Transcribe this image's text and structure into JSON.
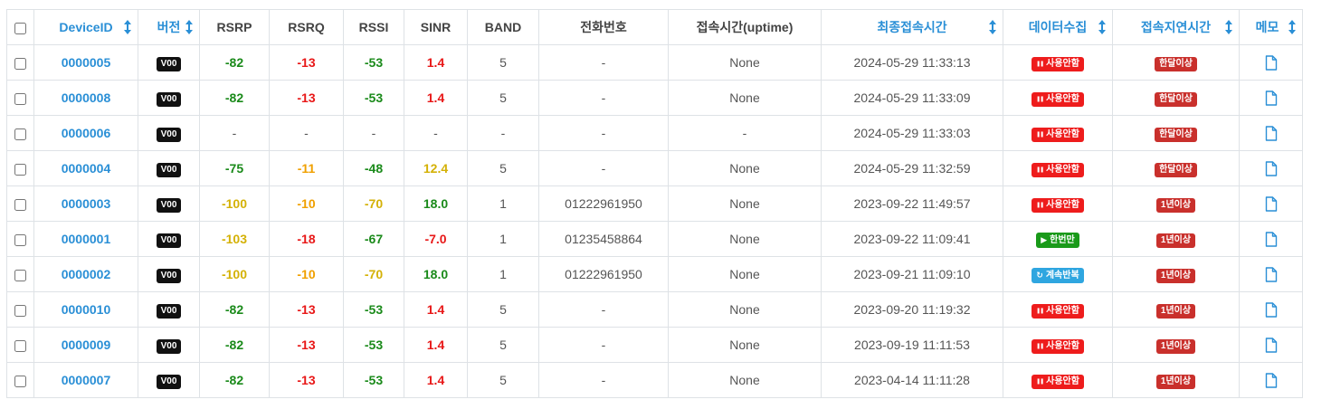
{
  "columns": [
    {
      "key": "select",
      "label": "",
      "sortable": false
    },
    {
      "key": "device_id",
      "label": "DeviceID",
      "sortable": true
    },
    {
      "key": "version",
      "label": "버전",
      "sortable": true
    },
    {
      "key": "rsrp",
      "label": "RSRP",
      "sortable": false
    },
    {
      "key": "rsrq",
      "label": "RSRQ",
      "sortable": false
    },
    {
      "key": "rssi",
      "label": "RSSI",
      "sortable": false
    },
    {
      "key": "sinr",
      "label": "SINR",
      "sortable": false
    },
    {
      "key": "band",
      "label": "BAND",
      "sortable": false
    },
    {
      "key": "phone",
      "label": "전화번호",
      "sortable": false
    },
    {
      "key": "uptime",
      "label": "접속시간(uptime)",
      "sortable": false
    },
    {
      "key": "last_connect",
      "label": "최종접속시간",
      "sortable": true
    },
    {
      "key": "data_collect",
      "label": "데이터수집",
      "sortable": true
    },
    {
      "key": "delay",
      "label": "접속지연시간",
      "sortable": true
    },
    {
      "key": "memo",
      "label": "메모",
      "sortable": true
    }
  ],
  "colors": {
    "link": "#2a8fd6",
    "good": "#1a8a1a",
    "bad": "#e81818",
    "warn_yellow": "#d4b106",
    "warn_orange": "#f0a000",
    "badge_off": "#ee1c1c",
    "badge_once": "#1a9a1a",
    "badge_repeat": "#2fa6e0",
    "badge_delay": "#c9302c"
  },
  "rows": [
    {
      "device_id": "0000005",
      "version": "V00",
      "rsrp": {
        "v": "-82",
        "c": "green"
      },
      "rsrq": {
        "v": "-13",
        "c": "red"
      },
      "rssi": {
        "v": "-53",
        "c": "green"
      },
      "sinr": {
        "v": "1.4",
        "c": "red"
      },
      "band": "5",
      "phone": "-",
      "uptime": "None",
      "last_connect": "2024-05-29 11:33:13",
      "data_collect": {
        "label": "사용안함",
        "type": "off",
        "icon": "pause-icon"
      },
      "delay": "한달이상"
    },
    {
      "device_id": "0000008",
      "version": "V00",
      "rsrp": {
        "v": "-82",
        "c": "green"
      },
      "rsrq": {
        "v": "-13",
        "c": "red"
      },
      "rssi": {
        "v": "-53",
        "c": "green"
      },
      "sinr": {
        "v": "1.4",
        "c": "red"
      },
      "band": "5",
      "phone": "-",
      "uptime": "None",
      "last_connect": "2024-05-29 11:33:09",
      "data_collect": {
        "label": "사용안함",
        "type": "off",
        "icon": "pause-icon"
      },
      "delay": "한달이상"
    },
    {
      "device_id": "0000006",
      "version": "V00",
      "rsrp": {
        "v": "-",
        "c": "plain"
      },
      "rsrq": {
        "v": "-",
        "c": "plain"
      },
      "rssi": {
        "v": "-",
        "c": "plain"
      },
      "sinr": {
        "v": "-",
        "c": "plain"
      },
      "band": "-",
      "phone": "-",
      "uptime": "-",
      "last_connect": "2024-05-29 11:33:03",
      "data_collect": {
        "label": "사용안함",
        "type": "off",
        "icon": "pause-icon"
      },
      "delay": "한달이상"
    },
    {
      "device_id": "0000004",
      "version": "V00",
      "rsrp": {
        "v": "-75",
        "c": "green"
      },
      "rsrq": {
        "v": "-11",
        "c": "orange"
      },
      "rssi": {
        "v": "-48",
        "c": "green"
      },
      "sinr": {
        "v": "12.4",
        "c": "yellow"
      },
      "band": "5",
      "phone": "-",
      "uptime": "None",
      "last_connect": "2024-05-29 11:32:59",
      "data_collect": {
        "label": "사용안함",
        "type": "off",
        "icon": "pause-icon"
      },
      "delay": "한달이상"
    },
    {
      "device_id": "0000003",
      "version": "V00",
      "rsrp": {
        "v": "-100",
        "c": "yellow"
      },
      "rsrq": {
        "v": "-10",
        "c": "orange"
      },
      "rssi": {
        "v": "-70",
        "c": "yellow"
      },
      "sinr": {
        "v": "18.0",
        "c": "green"
      },
      "band": "1",
      "phone": "01222961950",
      "uptime": "None",
      "last_connect": "2023-09-22 11:49:57",
      "data_collect": {
        "label": "사용안함",
        "type": "off",
        "icon": "pause-icon"
      },
      "delay": "1년이상"
    },
    {
      "device_id": "0000001",
      "version": "V00",
      "rsrp": {
        "v": "-103",
        "c": "yellow"
      },
      "rsrq": {
        "v": "-18",
        "c": "red"
      },
      "rssi": {
        "v": "-67",
        "c": "green"
      },
      "sinr": {
        "v": "-7.0",
        "c": "red"
      },
      "band": "1",
      "phone": "01235458864",
      "uptime": "None",
      "last_connect": "2023-09-22 11:09:41",
      "data_collect": {
        "label": "한번만",
        "type": "once",
        "icon": "play-icon"
      },
      "delay": "1년이상"
    },
    {
      "device_id": "0000002",
      "version": "V00",
      "rsrp": {
        "v": "-100",
        "c": "yellow"
      },
      "rsrq": {
        "v": "-10",
        "c": "orange"
      },
      "rssi": {
        "v": "-70",
        "c": "yellow"
      },
      "sinr": {
        "v": "18.0",
        "c": "green"
      },
      "band": "1",
      "phone": "01222961950",
      "uptime": "None",
      "last_connect": "2023-09-21 11:09:10",
      "data_collect": {
        "label": "계속반복",
        "type": "repeat",
        "icon": "refresh-icon"
      },
      "delay": "1년이상"
    },
    {
      "device_id": "0000010",
      "version": "V00",
      "rsrp": {
        "v": "-82",
        "c": "green"
      },
      "rsrq": {
        "v": "-13",
        "c": "red"
      },
      "rssi": {
        "v": "-53",
        "c": "green"
      },
      "sinr": {
        "v": "1.4",
        "c": "red"
      },
      "band": "5",
      "phone": "-",
      "uptime": "None",
      "last_connect": "2023-09-20 11:19:32",
      "data_collect": {
        "label": "사용안함",
        "type": "off",
        "icon": "pause-icon"
      },
      "delay": "1년이상"
    },
    {
      "device_id": "0000009",
      "version": "V00",
      "rsrp": {
        "v": "-82",
        "c": "green"
      },
      "rsrq": {
        "v": "-13",
        "c": "red"
      },
      "rssi": {
        "v": "-53",
        "c": "green"
      },
      "sinr": {
        "v": "1.4",
        "c": "red"
      },
      "band": "5",
      "phone": "-",
      "uptime": "None",
      "last_connect": "2023-09-19 11:11:53",
      "data_collect": {
        "label": "사용안함",
        "type": "off",
        "icon": "pause-icon"
      },
      "delay": "1년이상"
    },
    {
      "device_id": "0000007",
      "version": "V00",
      "rsrp": {
        "v": "-82",
        "c": "green"
      },
      "rsrq": {
        "v": "-13",
        "c": "red"
      },
      "rssi": {
        "v": "-53",
        "c": "green"
      },
      "sinr": {
        "v": "1.4",
        "c": "red"
      },
      "band": "5",
      "phone": "-",
      "uptime": "None",
      "last_connect": "2023-04-14 11:11:28",
      "data_collect": {
        "label": "사용안함",
        "type": "off",
        "icon": "pause-icon"
      },
      "delay": "1년이상"
    }
  ]
}
